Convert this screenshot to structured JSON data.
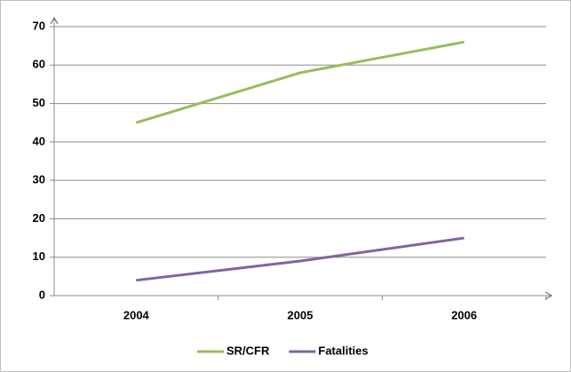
{
  "chart_data": {
    "type": "line",
    "categories": [
      "2004",
      "2005",
      "2006"
    ],
    "series": [
      {
        "name": "SR/CFR",
        "color": "#9bbb59",
        "values": [
          45,
          58,
          66
        ]
      },
      {
        "name": "Fatalities",
        "color": "#8064a2",
        "values": [
          4,
          9,
          15
        ]
      }
    ],
    "ylim": [
      0,
      70
    ],
    "yticks": [
      0,
      10,
      20,
      30,
      40,
      50,
      60,
      70
    ],
    "grid": true,
    "legend": "bottom"
  }
}
